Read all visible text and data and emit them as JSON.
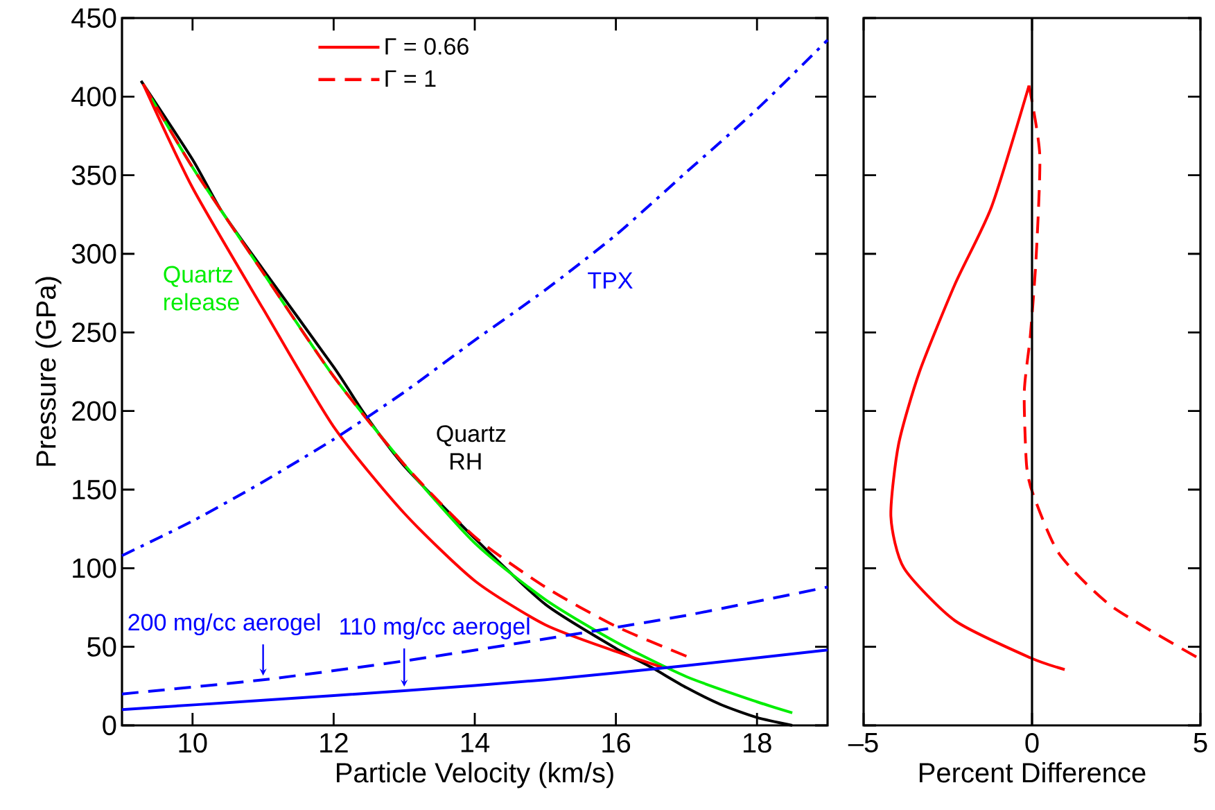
{
  "chart_data": [
    {
      "type": "line",
      "xlabel": "Particle Velocity (km/s)",
      "ylabel": "Pressure (GPa)",
      "xlim": [
        9,
        19
      ],
      "ylim": [
        0,
        450
      ],
      "xticks": [
        10,
        12,
        14,
        16,
        18
      ],
      "yticks": [
        0,
        50,
        100,
        150,
        200,
        250,
        300,
        350,
        400,
        450
      ],
      "legend": "top",
      "series": [
        {
          "name": "Quartz RH",
          "color": "#000000",
          "line_style": "solid",
          "x": [
            9.27,
            10,
            10.4,
            11,
            12,
            12.44,
            13,
            14,
            15,
            16,
            16.5,
            17,
            17.5,
            18,
            18.5
          ],
          "values": [
            410,
            360,
            328,
            290,
            228,
            198,
            165,
            119,
            77,
            49,
            37,
            24,
            13,
            5,
            0
          ]
        },
        {
          "name": "Quartz release",
          "color": "#00ee00",
          "line_style": "solid",
          "x": [
            9.3,
            10,
            11,
            12,
            13,
            14,
            15,
            16,
            17,
            18,
            18.5
          ],
          "values": [
            408,
            355,
            288,
            222,
            166,
            116,
            80,
            53,
            31,
            15,
            8
          ]
        },
        {
          "name": "Γ = 0.66",
          "color": "#ff0000",
          "line_style": "solid",
          "x": [
            9.3,
            10,
            11,
            12,
            13,
            14,
            15,
            16,
            16.65
          ],
          "values": [
            408,
            342,
            265,
            190,
            135,
            92,
            64,
            47,
            37
          ]
        },
        {
          "name": "Γ = 1",
          "color": "#ff0000",
          "line_style": "dashed",
          "x": [
            9.3,
            10,
            11,
            12,
            13,
            14,
            15,
            16,
            17
          ],
          "values": [
            408,
            355,
            288,
            222,
            166,
            120,
            88,
            63,
            44
          ]
        },
        {
          "name": "TPX",
          "color": "#0000ff",
          "line_style": "dashdot",
          "x": [
            9,
            10,
            11,
            12,
            13,
            14,
            15,
            16,
            17,
            18,
            19
          ],
          "values": [
            108,
            130,
            155,
            182,
            212,
            245,
            277,
            312,
            352,
            392,
            436
          ]
        },
        {
          "name": "200 mg/cc aerogel",
          "color": "#0000ff",
          "line_style": "dashed",
          "x": [
            9,
            11,
            13,
            15,
            17,
            19
          ],
          "values": [
            20,
            29,
            41,
            55,
            70,
            88
          ]
        },
        {
          "name": "110 mg/cc aerogel",
          "color": "#0000ff",
          "line_style": "solid",
          "x": [
            9,
            11,
            13,
            15,
            17,
            19
          ],
          "values": [
            10,
            16,
            22,
            29,
            38,
            48
          ]
        }
      ]
    },
    {
      "type": "line",
      "xlabel": "Percent Difference",
      "xlim": [
        -5,
        5
      ],
      "ylim": [
        0,
        450
      ],
      "xticks": [
        {
          "value": -5,
          "label": "–5"
        },
        0,
        5
      ],
      "yticks": [
        0,
        50,
        100,
        150,
        200,
        250,
        300,
        350,
        400,
        450
      ],
      "tick_labels": "x",
      "ref_lines": [
        {
          "axis": "x",
          "value": 0,
          "color": "#000000"
        }
      ],
      "series": [
        {
          "color": "#ff0000",
          "line_style": "solid",
          "x": [
            -0.09,
            -1.2,
            -2.28,
            -3.34,
            -3.96,
            -4.19,
            -3.8,
            -2.28,
            -0.05,
            0.97
          ],
          "values": [
            407,
            330,
            281,
            225,
            179,
            133,
            100,
            66.5,
            43,
            35.5
          ]
        },
        {
          "color": "#ff0000",
          "line_style": "dashed",
          "x": [
            -0.09,
            0.23,
            0.12,
            -0.05,
            -0.23,
            -0.16,
            0.05,
            0.81,
            2.35,
            4.88
          ],
          "values": [
            407,
            363,
            297,
            248,
            212,
            165,
            146,
            109,
            76,
            43.5
          ]
        }
      ]
    }
  ]
}
